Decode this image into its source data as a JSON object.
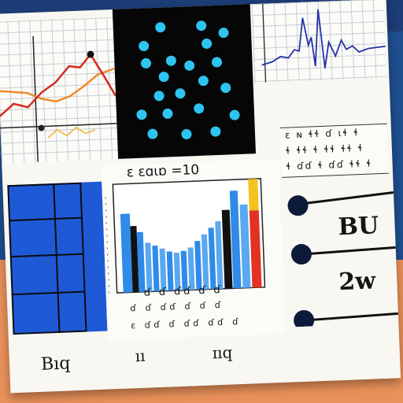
{
  "bar_panel": {
    "header": "ɛ ɛɑɩɒ =10",
    "tick_row_1": "ɗ  ɗ  ɗɗ  ɗ  ɗ",
    "tick_row_2": "ɗ ɗ  ɗɗ  ɗ ɗ ɗ",
    "tick_row_3": "ɛ ɗɗ ɗ ɗɗ ɗɗ ɗ"
  },
  "legend": {
    "label_top": "BU",
    "label_bottom": "2w"
  },
  "table_panel": {
    "row_1": "ɛ ɴ  ɬɬ ɗ  ɩɬ ɬ",
    "row_2": "ɬ ɬɬ ɬ ɬɬ ɬɬ ɬ",
    "row_3": "ɬ ɗɗ ɬ ɗɗ ɬɬ ɬ"
  },
  "footer": {
    "label_left": "Bıq",
    "label_middle": "ıı",
    "label_right": "ɪıq"
  },
  "colors": {
    "accent_blue": "#1f5ad6",
    "bar_blue": "#2f8ae8",
    "line_red": "#d62a1e",
    "line_orange": "#ef8a2c",
    "dot_cyan": "#2ec4f0",
    "wave_blue": "#2433a8",
    "orange_background": "#e9915a"
  },
  "icons": {
    "legend_marker": "filled-circle-marker"
  }
}
